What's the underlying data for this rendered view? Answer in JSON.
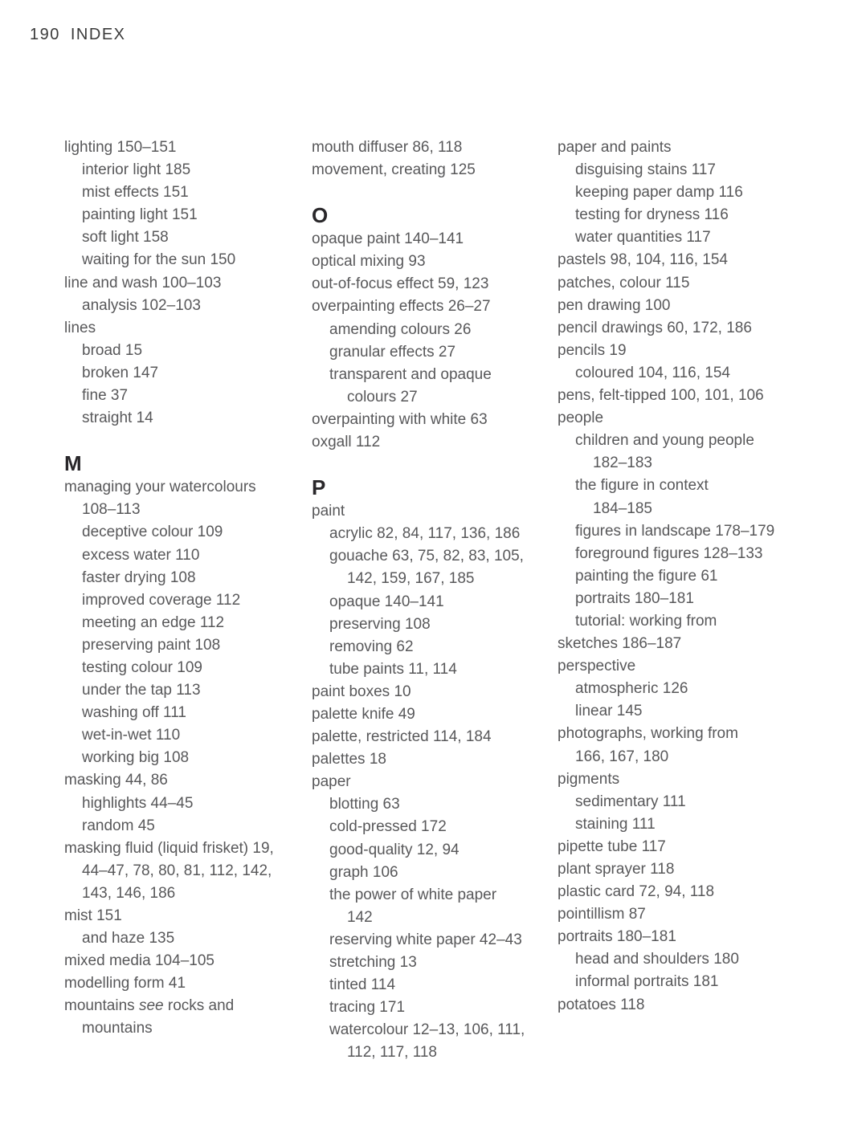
{
  "header": {
    "page_number": "190",
    "title": "INDEX"
  },
  "colors": {
    "background": "#ffffff",
    "body_text": "#58585a",
    "heading_text": "#29272a",
    "header_text": "#3a3a3a"
  },
  "columns": [
    {
      "blocks": [
        {
          "type": "line",
          "indent": 0,
          "text": "lighting 150–151"
        },
        {
          "type": "line",
          "indent": 1,
          "text": "interior light 185"
        },
        {
          "type": "line",
          "indent": 1,
          "text": "mist effects 151"
        },
        {
          "type": "line",
          "indent": 1,
          "text": "painting light 151"
        },
        {
          "type": "line",
          "indent": 1,
          "text": "soft light 158"
        },
        {
          "type": "line",
          "indent": 1,
          "text": "waiting for the sun 150"
        },
        {
          "type": "line",
          "indent": 0,
          "text": "line and wash 100–103"
        },
        {
          "type": "line",
          "indent": 1,
          "text": "analysis 102–103"
        },
        {
          "type": "line",
          "indent": 0,
          "text": "lines"
        },
        {
          "type": "line",
          "indent": 1,
          "text": "broad 15"
        },
        {
          "type": "line",
          "indent": 1,
          "text": "broken 147"
        },
        {
          "type": "line",
          "indent": 1,
          "text": "fine 37"
        },
        {
          "type": "line",
          "indent": 1,
          "text": "straight 14"
        },
        {
          "type": "heading",
          "text": "M"
        },
        {
          "type": "line",
          "indent": 0,
          "text": "managing your watercolours"
        },
        {
          "type": "line",
          "indent": 1,
          "text": "108–113"
        },
        {
          "type": "line",
          "indent": 1,
          "text": "deceptive colour 109"
        },
        {
          "type": "line",
          "indent": 1,
          "text": "excess water 110"
        },
        {
          "type": "line",
          "indent": 1,
          "text": "faster drying 108"
        },
        {
          "type": "line",
          "indent": 1,
          "text": "improved coverage 112"
        },
        {
          "type": "line",
          "indent": 1,
          "text": "meeting an edge 112"
        },
        {
          "type": "line",
          "indent": 1,
          "text": "preserving paint 108"
        },
        {
          "type": "line",
          "indent": 1,
          "text": "testing colour 109"
        },
        {
          "type": "line",
          "indent": 1,
          "text": "under the tap 113"
        },
        {
          "type": "line",
          "indent": 1,
          "text": "washing off 111"
        },
        {
          "type": "line",
          "indent": 1,
          "text": "wet-in-wet 110"
        },
        {
          "type": "line",
          "indent": 1,
          "text": "working big 108"
        },
        {
          "type": "line",
          "indent": 0,
          "text": "masking 44, 86"
        },
        {
          "type": "line",
          "indent": 1,
          "text": "highlights 44–45"
        },
        {
          "type": "line",
          "indent": 1,
          "text": "random 45"
        },
        {
          "type": "line",
          "indent": 0,
          "text": "masking fluid (liquid frisket) 19,"
        },
        {
          "type": "line",
          "indent": 1,
          "text": "44–47, 78, 80, 81, 112, 142,"
        },
        {
          "type": "line",
          "indent": 1,
          "text": "143, 146, 186"
        },
        {
          "type": "line",
          "indent": 0,
          "text": "mist 151"
        },
        {
          "type": "line",
          "indent": 1,
          "text": "and haze 135"
        },
        {
          "type": "line",
          "indent": 0,
          "text": "mixed media 104–105"
        },
        {
          "type": "line",
          "indent": 0,
          "text": "modelling form 41"
        },
        {
          "type": "line",
          "indent": 0,
          "text": "mountains *see* rocks and"
        },
        {
          "type": "line",
          "indent": 1,
          "text": "mountains"
        }
      ]
    },
    {
      "blocks": [
        {
          "type": "line",
          "indent": 0,
          "text": "mouth diffuser 86, 118"
        },
        {
          "type": "line",
          "indent": 0,
          "text": "movement, creating 125"
        },
        {
          "type": "heading",
          "text": "O"
        },
        {
          "type": "line",
          "indent": 0,
          "text": "opaque paint 140–141"
        },
        {
          "type": "line",
          "indent": 0,
          "text": "optical mixing 93"
        },
        {
          "type": "line",
          "indent": 0,
          "text": "out-of-focus effect 59, 123"
        },
        {
          "type": "line",
          "indent": 0,
          "text": "overpainting effects 26–27"
        },
        {
          "type": "line",
          "indent": 1,
          "text": "amending colours 26"
        },
        {
          "type": "line",
          "indent": 1,
          "text": "granular effects 27"
        },
        {
          "type": "line",
          "indent": 1,
          "text": "transparent and opaque"
        },
        {
          "type": "line",
          "indent": 2,
          "text": "colours 27"
        },
        {
          "type": "line",
          "indent": 0,
          "text": "overpainting with white 63"
        },
        {
          "type": "line",
          "indent": 0,
          "text": "oxgall 112"
        },
        {
          "type": "heading",
          "text": "P"
        },
        {
          "type": "line",
          "indent": 0,
          "text": "paint"
        },
        {
          "type": "line",
          "indent": 1,
          "text": "acrylic 82, 84, 117, 136, 186"
        },
        {
          "type": "line",
          "indent": 1,
          "text": "gouache 63, 75, 82, 83, 105,"
        },
        {
          "type": "line",
          "indent": 2,
          "text": "142, 159, 167, 185"
        },
        {
          "type": "line",
          "indent": 1,
          "text": "opaque 140–141"
        },
        {
          "type": "line",
          "indent": 1,
          "text": "preserving 108"
        },
        {
          "type": "line",
          "indent": 1,
          "text": "removing 62"
        },
        {
          "type": "line",
          "indent": 1,
          "text": "tube paints 11, 114"
        },
        {
          "type": "line",
          "indent": 0,
          "text": "paint boxes 10"
        },
        {
          "type": "line",
          "indent": 0,
          "text": "palette knife 49"
        },
        {
          "type": "line",
          "indent": 0,
          "text": "palette, restricted 114, 184"
        },
        {
          "type": "line",
          "indent": 0,
          "text": "palettes 18"
        },
        {
          "type": "line",
          "indent": 0,
          "text": "paper"
        },
        {
          "type": "line",
          "indent": 1,
          "text": "blotting 63"
        },
        {
          "type": "line",
          "indent": 1,
          "text": "cold-pressed 172"
        },
        {
          "type": "line",
          "indent": 1,
          "text": "good-quality 12, 94"
        },
        {
          "type": "line",
          "indent": 1,
          "text": "graph 106"
        },
        {
          "type": "line",
          "indent": 1,
          "text": "the power of white paper"
        },
        {
          "type": "line",
          "indent": 2,
          "text": "142"
        },
        {
          "type": "line",
          "indent": 1,
          "text": "reserving white paper 42–43"
        },
        {
          "type": "line",
          "indent": 1,
          "text": "stretching 13"
        },
        {
          "type": "line",
          "indent": 1,
          "text": "tinted 114"
        },
        {
          "type": "line",
          "indent": 1,
          "text": "tracing 171"
        },
        {
          "type": "line",
          "indent": 1,
          "text": "watercolour 12–13, 106, 111,"
        },
        {
          "type": "line",
          "indent": 2,
          "text": "112, 117, 118"
        }
      ]
    },
    {
      "blocks": [
        {
          "type": "line",
          "indent": 0,
          "text": "paper and paints"
        },
        {
          "type": "line",
          "indent": 1,
          "text": "disguising stains 117"
        },
        {
          "type": "line",
          "indent": 1,
          "text": "keeping paper damp 116"
        },
        {
          "type": "line",
          "indent": 1,
          "text": "testing for dryness 116"
        },
        {
          "type": "line",
          "indent": 1,
          "text": "water quantities 117"
        },
        {
          "type": "line",
          "indent": 0,
          "text": "pastels 98, 104, 116, 154"
        },
        {
          "type": "line",
          "indent": 0,
          "text": "patches, colour 115"
        },
        {
          "type": "line",
          "indent": 0,
          "text": "pen drawing 100"
        },
        {
          "type": "line",
          "indent": 0,
          "text": "pencil drawings 60, 172, 186"
        },
        {
          "type": "line",
          "indent": 0,
          "text": "pencils 19"
        },
        {
          "type": "line",
          "indent": 1,
          "text": "coloured 104, 116, 154"
        },
        {
          "type": "line",
          "indent": 0,
          "text": "pens, felt-tipped 100, 101, 106"
        },
        {
          "type": "line",
          "indent": 0,
          "text": "people"
        },
        {
          "type": "line",
          "indent": 1,
          "text": "children and young people"
        },
        {
          "type": "line",
          "indent": 2,
          "text": "182–183"
        },
        {
          "type": "line",
          "indent": 1,
          "text": "the figure in context"
        },
        {
          "type": "line",
          "indent": 2,
          "text": "184–185"
        },
        {
          "type": "line",
          "indent": 1,
          "text": "figures in landscape 178–179"
        },
        {
          "type": "line",
          "indent": 1,
          "text": "foreground figures 128–133"
        },
        {
          "type": "line",
          "indent": 1,
          "text": "painting the figure 61"
        },
        {
          "type": "line",
          "indent": 1,
          "text": "portraits 180–181"
        },
        {
          "type": "line",
          "indent": 1,
          "text": "tutorial: working from"
        },
        {
          "type": "line",
          "indent": 0,
          "text": "sketches 186–187"
        },
        {
          "type": "line",
          "indent": 0,
          "text": "perspective"
        },
        {
          "type": "line",
          "indent": 1,
          "text": "atmospheric 126"
        },
        {
          "type": "line",
          "indent": 1,
          "text": "linear 145"
        },
        {
          "type": "line",
          "indent": 0,
          "text": "photographs, working from"
        },
        {
          "type": "line",
          "indent": 1,
          "text": "166, 167, 180"
        },
        {
          "type": "line",
          "indent": 0,
          "text": "pigments"
        },
        {
          "type": "line",
          "indent": 1,
          "text": "sedimentary 111"
        },
        {
          "type": "line",
          "indent": 1,
          "text": "staining 111"
        },
        {
          "type": "line",
          "indent": 0,
          "text": "pipette tube 117"
        },
        {
          "type": "line",
          "indent": 0,
          "text": "plant sprayer 118"
        },
        {
          "type": "line",
          "indent": 0,
          "text": "plastic card 72, 94, 118"
        },
        {
          "type": "line",
          "indent": 0,
          "text": "pointillism 87"
        },
        {
          "type": "line",
          "indent": 0,
          "text": "portraits 180–181"
        },
        {
          "type": "line",
          "indent": 1,
          "text": "head and shoulders 180"
        },
        {
          "type": "line",
          "indent": 1,
          "text": "informal portraits 181"
        },
        {
          "type": "line",
          "indent": 0,
          "text": "potatoes 118"
        }
      ]
    }
  ]
}
